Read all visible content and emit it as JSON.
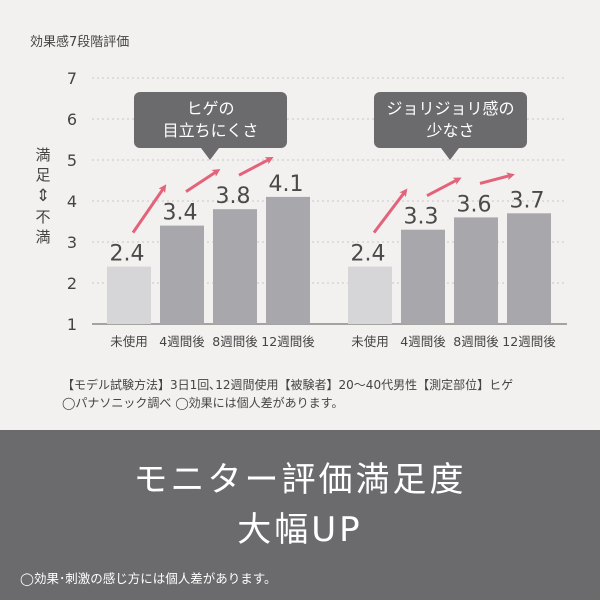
{
  "chart_data": [
    {
      "type": "bar",
      "categories": [
        "未使用",
        "4週間後",
        "8週間後",
        "12週間後"
      ],
      "values": [
        2.4,
        3.4,
        3.8,
        4.1
      ],
      "data_labels": [
        "2.4",
        "3.4",
        "3.8",
        "4.1"
      ],
      "callout": [
        "ヒゲの",
        "目立ちにくさ"
      ],
      "ylim": [
        1,
        7
      ],
      "yticks": [
        "1",
        "2",
        "3",
        "4",
        "5",
        "6",
        "7"
      ],
      "colors": [
        "#d6d5d7",
        "#a8a7ab",
        "#a8a7ab",
        "#a8a7ab"
      ],
      "grid": true
    },
    {
      "type": "bar",
      "categories": [
        "未使用",
        "4週間後",
        "8週間後",
        "12週間後"
      ],
      "values": [
        2.4,
        3.3,
        3.6,
        3.7
      ],
      "data_labels": [
        "2.4",
        "3.3",
        "3.6",
        "3.7"
      ],
      "callout": [
        "ジョリジョリ感の",
        "少なさ"
      ],
      "ylim": [
        1,
        7
      ],
      "colors": [
        "#d6d5d7",
        "#a8a7ab",
        "#a8a7ab",
        "#a8a7ab"
      ],
      "grid": true
    }
  ],
  "title": "効果感7段階評価",
  "ylabel": {
    "top": "満足",
    "arrow": "⇕",
    "bottom": "不満"
  },
  "footnote": {
    "line1": "【モデル試験方法】3日1回､12週間使用【被験者】20～40代男性【測定部位】ヒゲ",
    "line2": "◯パナソニック調べ ◯効果には個人差があります。"
  },
  "banner": {
    "line1": "モニター評価満足度",
    "line2": "大幅UP",
    "note": "◯効果･刺激の感じ方には個人差があります。"
  },
  "arrow_color": "#e2637a"
}
